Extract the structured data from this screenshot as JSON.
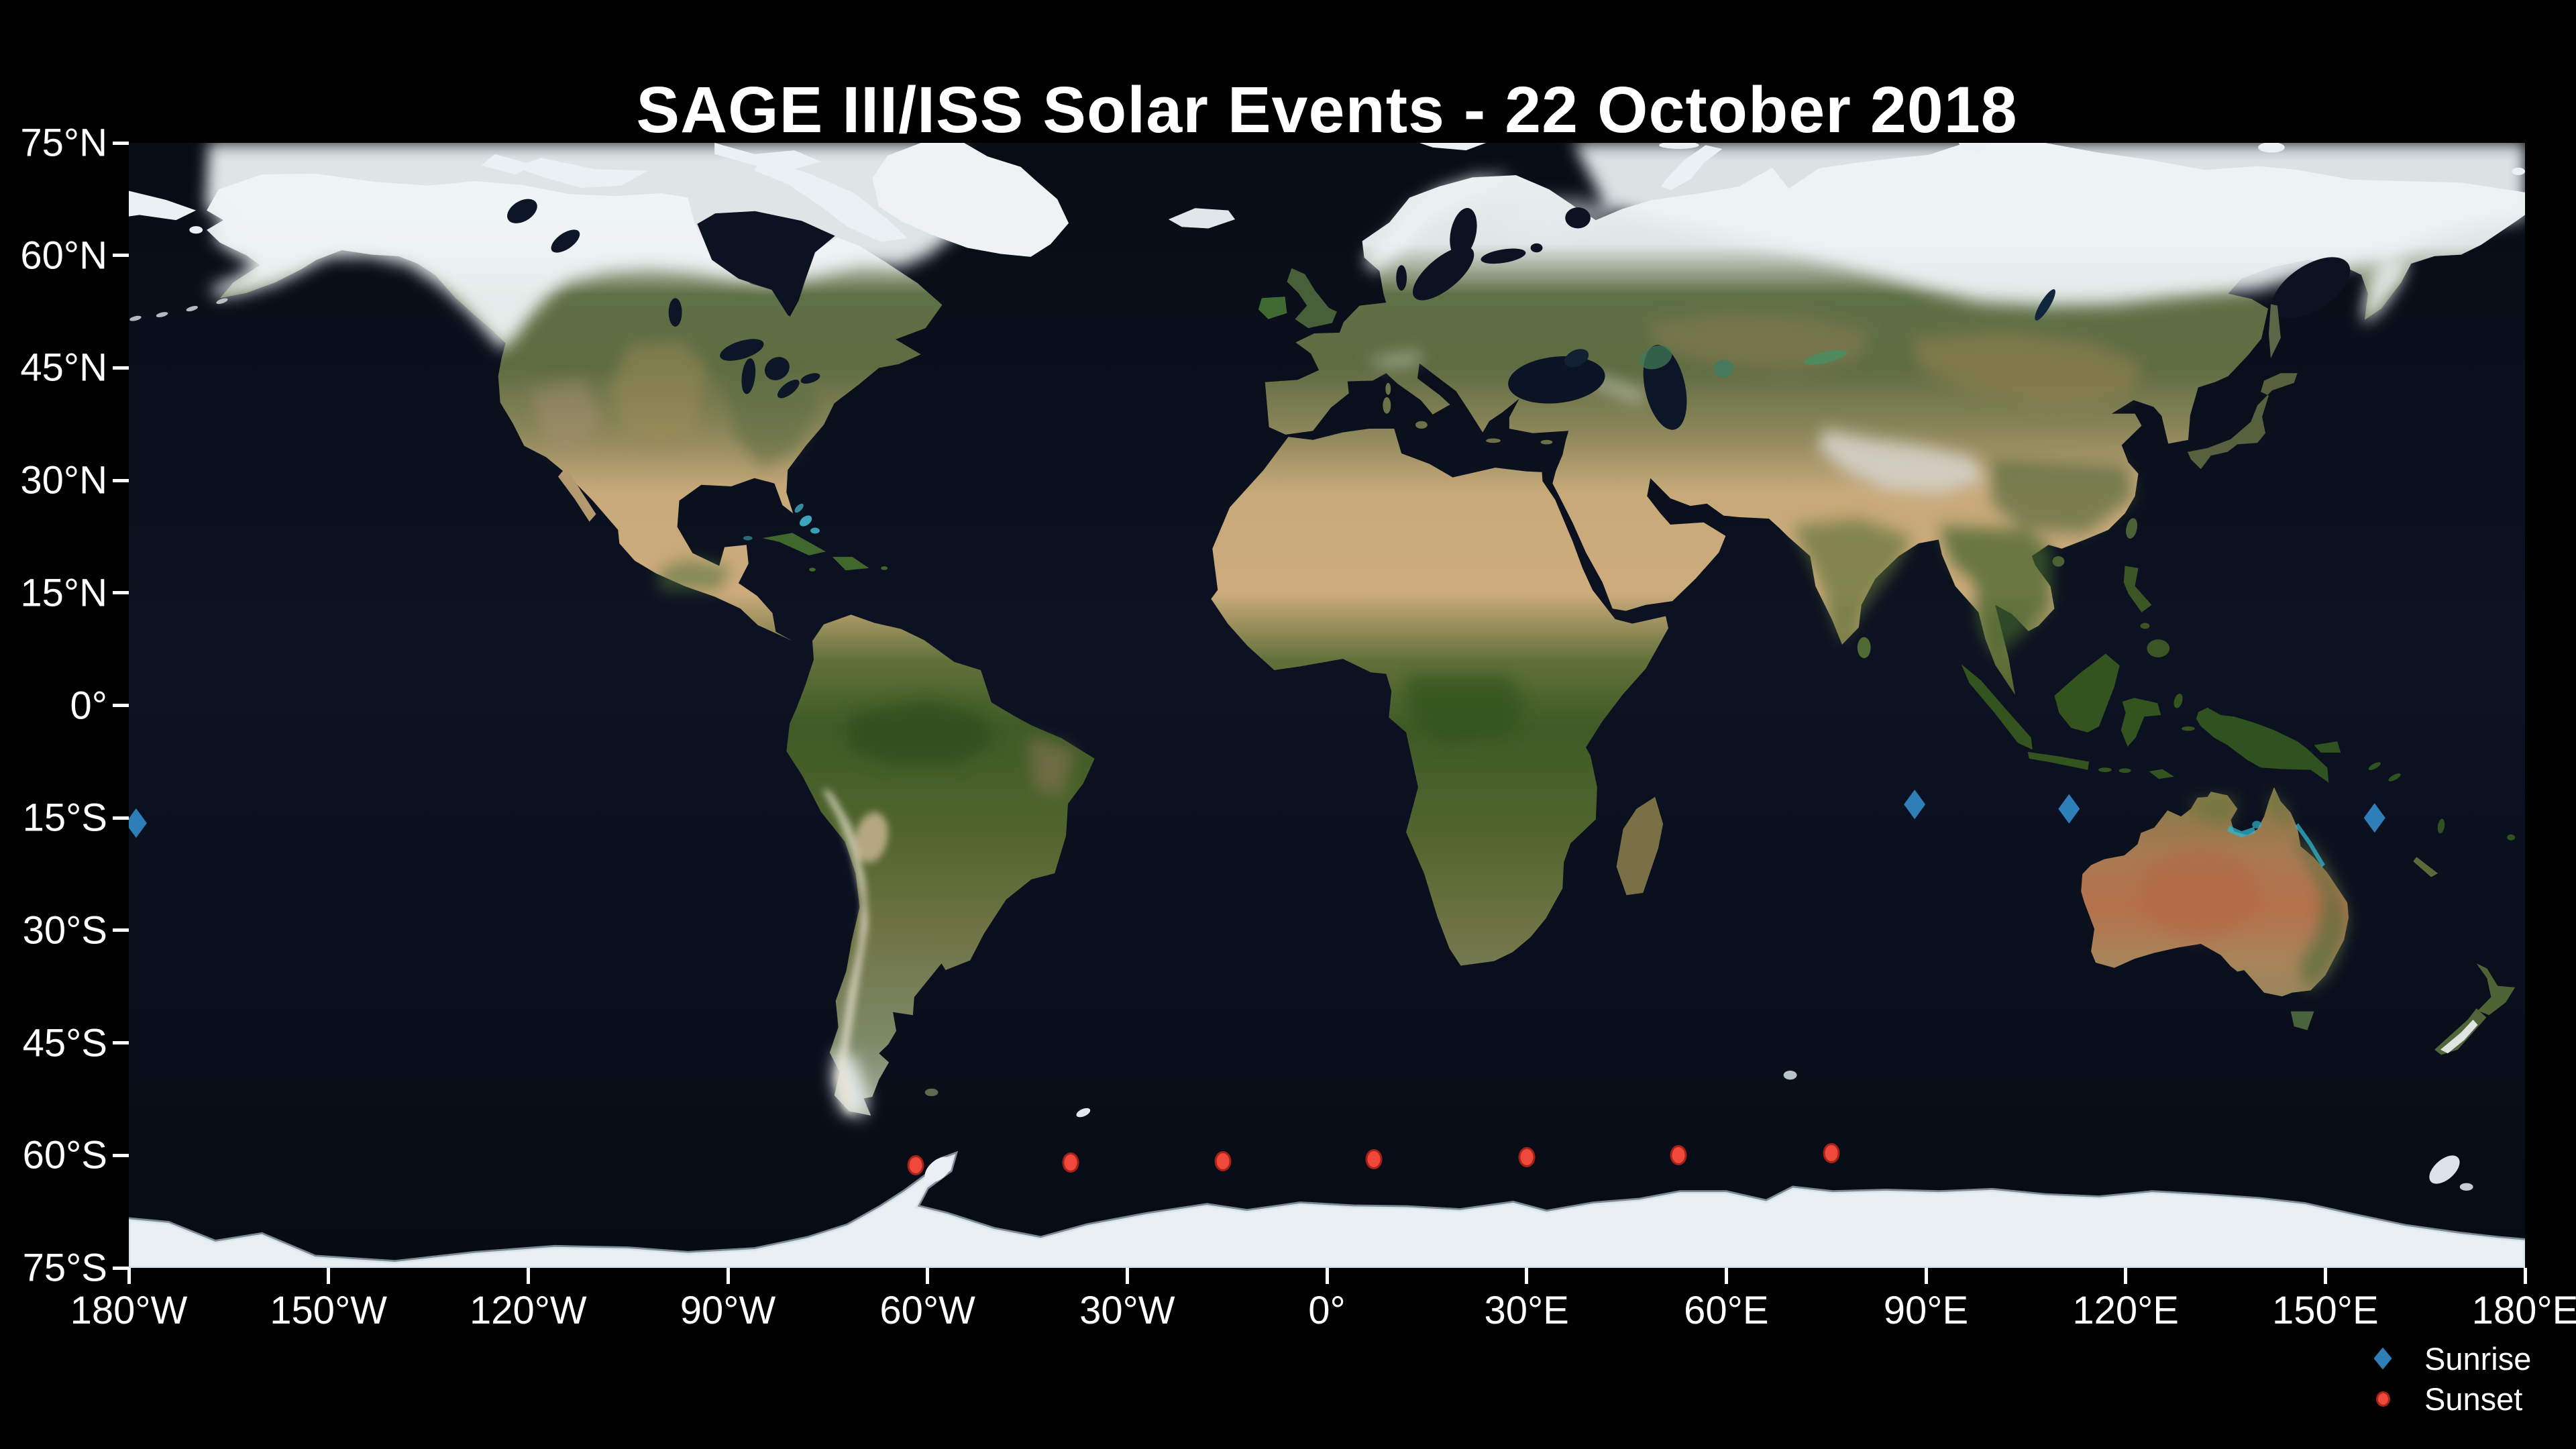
{
  "title": "SAGE III/ISS Solar Events - 22 October 2018",
  "colors": {
    "background": "#000000",
    "ocean": "#0a0f1b",
    "axis": "#ffffff",
    "text": "#ffffff",
    "sunrise_marker": "#2e7eb8",
    "sunset_marker": "#f0483a",
    "sunset_marker_edge": "#8c160d"
  },
  "axes": {
    "lon_range": [
      -180,
      180
    ],
    "lat_range": [
      -75,
      75
    ],
    "lon_ticks": [
      {
        "deg": -180,
        "label": "180°W"
      },
      {
        "deg": -150,
        "label": "150°W"
      },
      {
        "deg": -120,
        "label": "120°W"
      },
      {
        "deg": -90,
        "label": "90°W"
      },
      {
        "deg": -60,
        "label": "60°W"
      },
      {
        "deg": -30,
        "label": "30°W"
      },
      {
        "deg": 0,
        "label": "0°"
      },
      {
        "deg": 30,
        "label": "30°E"
      },
      {
        "deg": 60,
        "label": "60°E"
      },
      {
        "deg": 90,
        "label": "90°E"
      },
      {
        "deg": 120,
        "label": "120°E"
      },
      {
        "deg": 150,
        "label": "150°E"
      },
      {
        "deg": 180,
        "label": "180°E"
      }
    ],
    "lat_ticks": [
      {
        "deg": 75,
        "label": "75°N"
      },
      {
        "deg": 60,
        "label": "60°N"
      },
      {
        "deg": 45,
        "label": "45°N"
      },
      {
        "deg": 30,
        "label": "30°N"
      },
      {
        "deg": 15,
        "label": "15°N"
      },
      {
        "deg": 0,
        "label": "0°"
      },
      {
        "deg": -15,
        "label": "15°S"
      },
      {
        "deg": -30,
        "label": "30°S"
      },
      {
        "deg": -45,
        "label": "45°S"
      },
      {
        "deg": -60,
        "label": "60°S"
      },
      {
        "deg": -75,
        "label": "75°S"
      }
    ]
  },
  "legend": {
    "items": [
      {
        "label": "Sunrise",
        "marker": "diamond",
        "color": "#2e7eb8"
      },
      {
        "label": "Sunset",
        "marker": "circle",
        "color": "#f0483a"
      }
    ]
  },
  "chart_data": {
    "type": "scatter",
    "title": "SAGE III/ISS Solar Events - 22 October 2018",
    "xlabel": "",
    "ylabel": "",
    "xlim": [
      -180,
      180
    ],
    "ylim": [
      -75,
      75
    ],
    "x_tick_labels": [
      "180°W",
      "150°W",
      "120°W",
      "90°W",
      "60°W",
      "30°W",
      "0°",
      "30°E",
      "60°E",
      "90°E",
      "120°E",
      "150°E",
      "180°E"
    ],
    "y_tick_labels": [
      "75°N",
      "60°N",
      "45°N",
      "30°N",
      "15°N",
      "0°",
      "15°S",
      "30°S",
      "45°S",
      "60°S",
      "75°S"
    ],
    "basemap": "Blue Marble satellite world map, equirectangular projection",
    "legend_position": "lower right, below axes",
    "grid": false,
    "series": [
      {
        "name": "Sunrise",
        "marker": "diamond",
        "color": "#2e7eb8",
        "points_lon_lat": [
          [
            -178.9,
            -15.7
          ],
          [
            88.3,
            -13.2
          ],
          [
            111.5,
            -13.8
          ],
          [
            157.4,
            -15.0
          ]
        ]
      },
      {
        "name": "Sunset",
        "marker": "circle",
        "color": "#f0483a",
        "points_lon_lat": [
          [
            -61.8,
            -61.3
          ],
          [
            -38.5,
            -61.0
          ],
          [
            -15.6,
            -60.8
          ],
          [
            7.1,
            -60.5
          ],
          [
            30.0,
            -60.2
          ],
          [
            52.8,
            -60.0
          ],
          [
            75.8,
            -59.7
          ]
        ]
      }
    ]
  }
}
